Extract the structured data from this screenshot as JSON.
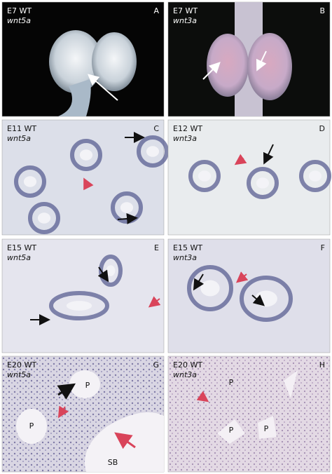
{
  "panels": [
    {
      "letter": "A",
      "stage": "E7 WT",
      "gene": "wnt5a",
      "labels": []
    },
    {
      "letter": "B",
      "stage": "E7 WT",
      "gene": "wnt3a",
      "labels": []
    },
    {
      "letter": "C",
      "stage": "E11 WT",
      "gene": "wnt5a",
      "labels": []
    },
    {
      "letter": "D",
      "stage": "E12 WT",
      "gene": "wnt3a",
      "labels": []
    },
    {
      "letter": "E",
      "stage": "E15 WT",
      "gene": "wnt5a",
      "labels": []
    },
    {
      "letter": "F",
      "stage": "E15 WT",
      "gene": "wnt3a",
      "labels": []
    },
    {
      "letter": "G",
      "stage": "E20 WT",
      "gene": "wnt5a",
      "labels": [
        "P",
        "P",
        "SB"
      ]
    },
    {
      "letter": "H",
      "stage": "E20 WT",
      "gene": "wnt3a",
      "labels": [
        "P",
        "P",
        "P"
      ]
    }
  ]
}
